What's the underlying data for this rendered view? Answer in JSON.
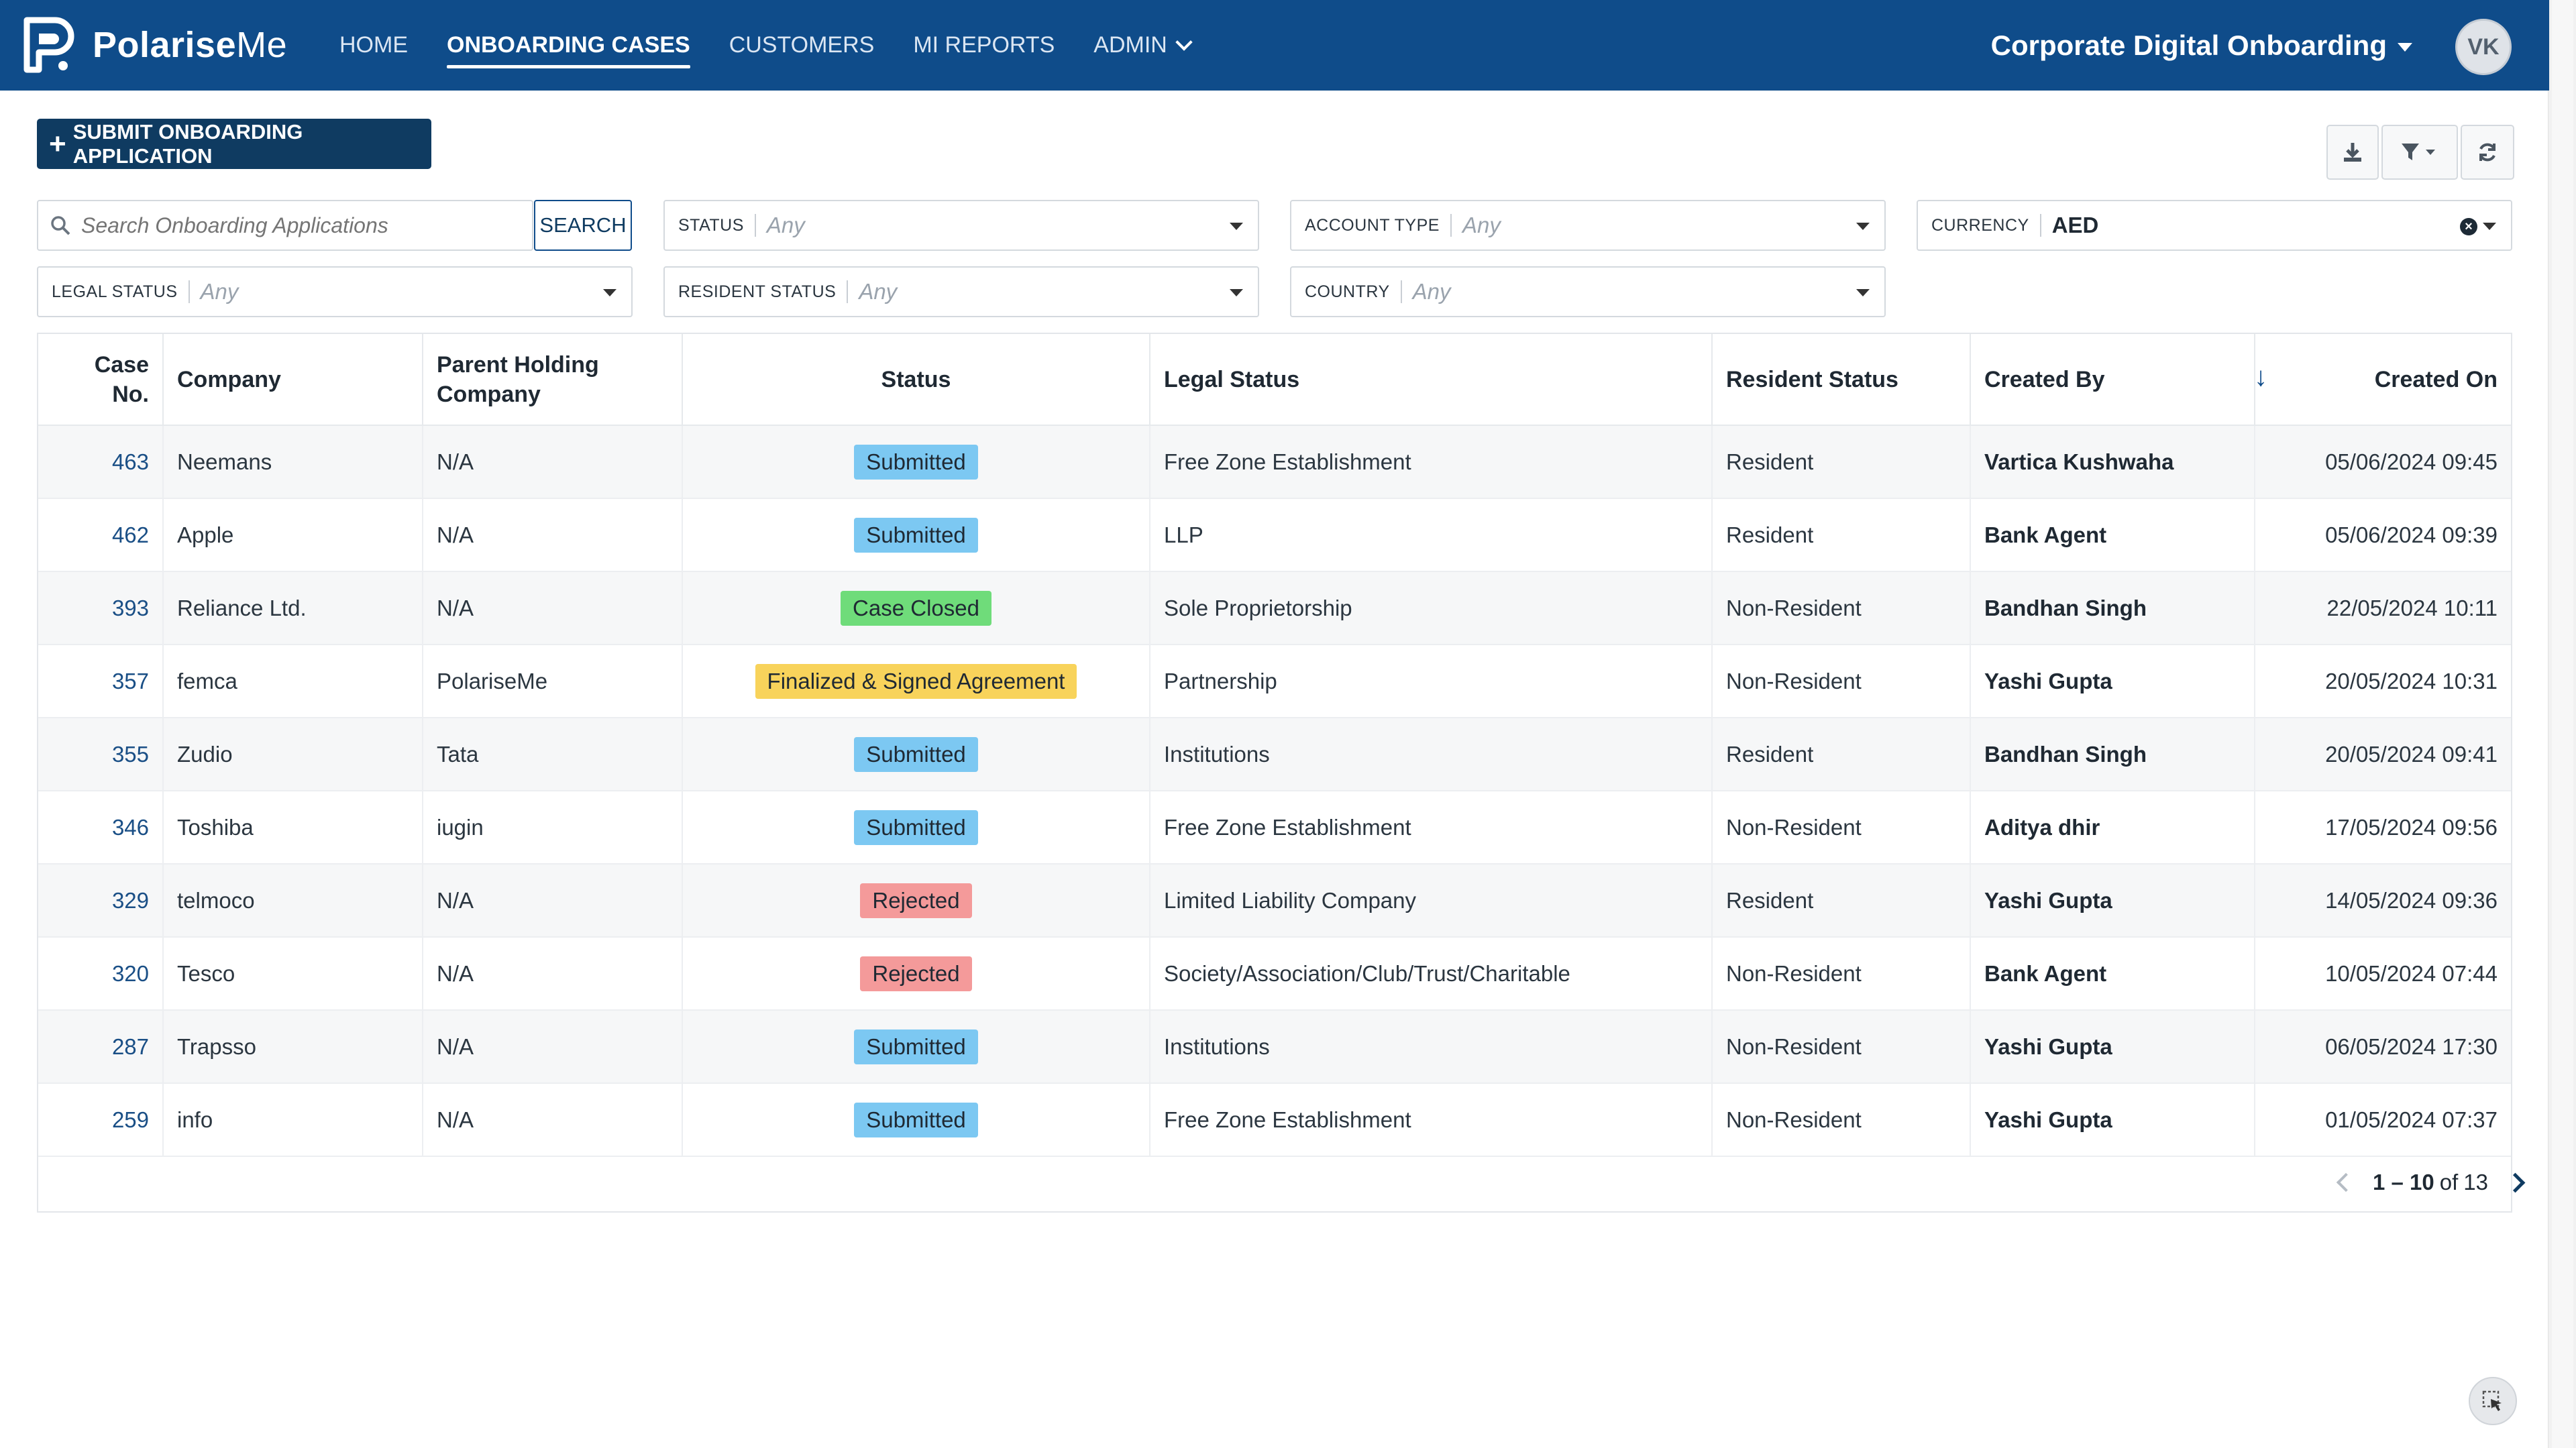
{
  "brand": {
    "name_bold": "Polarise",
    "name_light": "Me"
  },
  "nav": [
    {
      "label": "HOME",
      "active": false
    },
    {
      "label": "ONBOARDING CASES",
      "active": true
    },
    {
      "label": "CUSTOMERS",
      "active": false
    },
    {
      "label": "MI REPORTS",
      "active": false
    },
    {
      "label": "ADMIN",
      "active": false
    }
  ],
  "workspace": "Corporate Digital Onboarding",
  "user_initials": "VK",
  "actions": {
    "submit_label": "SUBMIT ONBOARDING APPLICATION"
  },
  "search": {
    "placeholder": "Search Onboarding Applications",
    "button": "SEARCH"
  },
  "filters": {
    "status": {
      "label": "STATUS",
      "value": "Any"
    },
    "account_type": {
      "label": "ACCOUNT TYPE",
      "value": "Any"
    },
    "currency": {
      "label": "CURRENCY",
      "value": "AED"
    },
    "legal_status": {
      "label": "LEGAL STATUS",
      "value": "Any"
    },
    "resident_status": {
      "label": "RESIDENT STATUS",
      "value": "Any"
    },
    "country": {
      "label": "COUNTRY",
      "value": "Any"
    }
  },
  "table": {
    "headers": {
      "case_no": "Case No.",
      "company": "Company",
      "parent": "Parent Holding Company",
      "status": "Status",
      "legal": "Legal Status",
      "resident": "Resident Status",
      "created_by": "Created By",
      "created_on": "Created On"
    },
    "status_colors": {
      "Submitted": "#7cc8f2",
      "Case Closed": "#6fdc7a",
      "Finalized & Signed Agreement": "#f8d35b",
      "Rejected": "#f49a9a"
    },
    "rows": [
      {
        "case_no": "463",
        "company": "Neemans",
        "parent": "N/A",
        "status": "Submitted",
        "legal": "Free Zone Establishment",
        "resident": "Resident",
        "created_by": "Vartica Kushwaha",
        "created_on": "05/06/2024 09:45"
      },
      {
        "case_no": "462",
        "company": "Apple",
        "parent": "N/A",
        "status": "Submitted",
        "legal": "LLP",
        "resident": "Resident",
        "created_by": "Bank Agent",
        "created_on": "05/06/2024 09:39"
      },
      {
        "case_no": "393",
        "company": "Reliance Ltd.",
        "parent": "N/A",
        "status": "Case Closed",
        "legal": "Sole Proprietorship",
        "resident": "Non-Resident",
        "created_by": "Bandhan Singh",
        "created_on": "22/05/2024 10:11"
      },
      {
        "case_no": "357",
        "company": "femca",
        "parent": "PolariseMe",
        "status": "Finalized & Signed Agreement",
        "legal": "Partnership",
        "resident": "Non-Resident",
        "created_by": "Yashi Gupta",
        "created_on": "20/05/2024 10:31"
      },
      {
        "case_no": "355",
        "company": "Zudio",
        "parent": "Tata",
        "status": "Submitted",
        "legal": "Institutions",
        "resident": "Resident",
        "created_by": "Bandhan Singh",
        "created_on": "20/05/2024 09:41"
      },
      {
        "case_no": "346",
        "company": "Toshiba",
        "parent": "iugin",
        "status": "Submitted",
        "legal": "Free Zone Establishment",
        "resident": "Non-Resident",
        "created_by": "Aditya dhir",
        "created_on": "17/05/2024 09:56"
      },
      {
        "case_no": "329",
        "company": "telmoco",
        "parent": "N/A",
        "status": "Rejected",
        "legal": "Limited Liability Company",
        "resident": "Resident",
        "created_by": "Yashi Gupta",
        "created_on": "14/05/2024 09:36"
      },
      {
        "case_no": "320",
        "company": "Tesco",
        "parent": "N/A",
        "status": "Rejected",
        "legal": "Society/Association/Club/Trust/Charitable",
        "resident": "Non-Resident",
        "created_by": "Bank Agent",
        "created_on": "10/05/2024 07:44"
      },
      {
        "case_no": "287",
        "company": "Trapsso",
        "parent": "N/A",
        "status": "Submitted",
        "legal": "Institutions",
        "resident": "Non-Resident",
        "created_by": "Yashi Gupta",
        "created_on": "06/05/2024 17:30"
      },
      {
        "case_no": "259",
        "company": "info",
        "parent": "N/A",
        "status": "Submitted",
        "legal": "Free Zone Establishment",
        "resident": "Non-Resident",
        "created_by": "Yashi Gupta",
        "created_on": "01/05/2024 07:37"
      }
    ]
  },
  "pagination": {
    "range": "1 – 10",
    "of_label": "of",
    "total": "13"
  }
}
